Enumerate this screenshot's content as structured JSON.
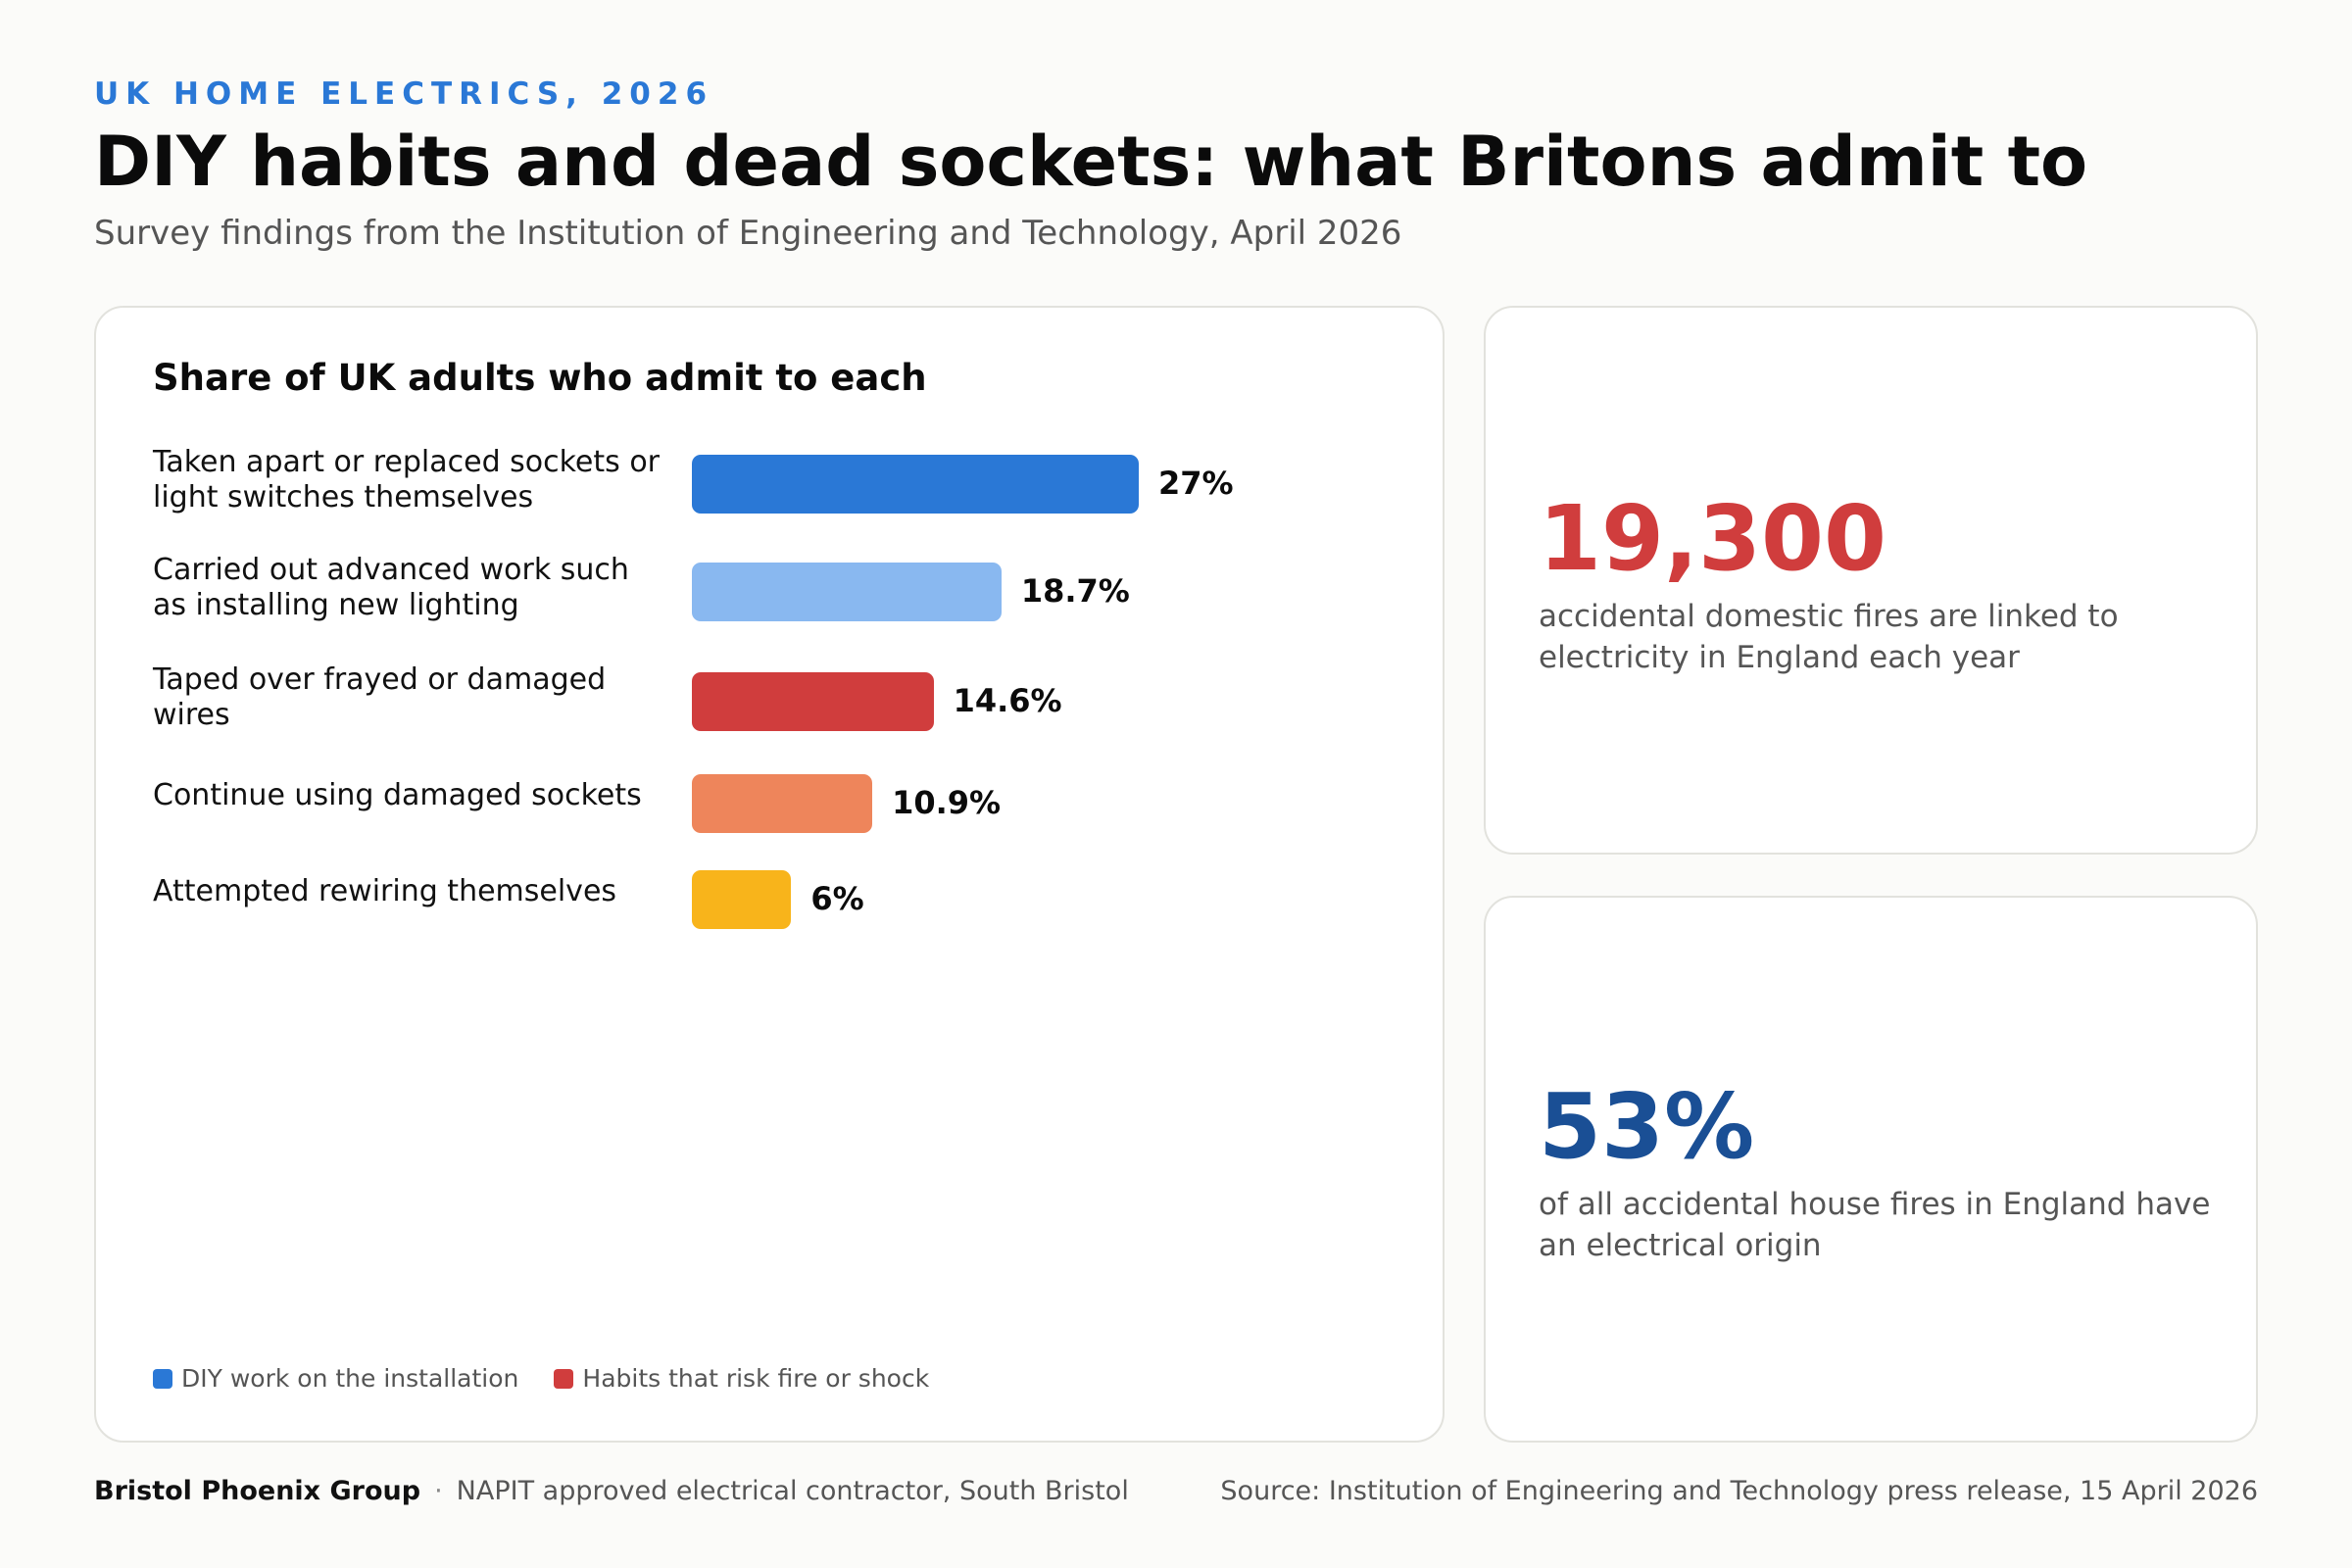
{
  "header": {
    "eyebrow": "UK HOME ELECTRICS, 2026",
    "title": "DIY habits and dead sockets: what Britons admit to",
    "subtitle": "Survey findings from the Institution of Engineering and Technology, April 2026"
  },
  "colors": {
    "accent_blue": "#2a78d6",
    "light_blue": "#89b8f0",
    "red": "#d03d3d",
    "orange": "#ee855b",
    "yellow": "#f8b41b",
    "dark_blue": "#1a4f95"
  },
  "chart_data": {
    "type": "bar",
    "orientation": "horizontal",
    "title": "Share of UK adults who admit to each",
    "categories": [
      "Taken apart or replaced sockets or light switches themselves",
      "Carried out advanced work such as installing new lighting",
      "Taped over frayed or damaged wires",
      "Continue using damaged sockets",
      "Attempted rewiring themselves"
    ],
    "values": [
      27,
      18.7,
      14.6,
      10.9,
      6
    ],
    "value_labels": [
      "27%",
      "18.7%",
      "14.6%",
      "10.9%",
      "6%"
    ],
    "bar_colors": [
      "#2a78d6",
      "#89b8f0",
      "#d03d3d",
      "#ee855b",
      "#f8b41b"
    ],
    "xlim": [
      0,
      100
    ],
    "grid": false,
    "legend_position": "bottom-left",
    "legend": [
      {
        "label": "DIY work on the installation",
        "color": "#2a78d6"
      },
      {
        "label": "Habits that risk fire or shock",
        "color": "#d03d3d"
      }
    ]
  },
  "stats": [
    {
      "number": "19,300",
      "text": "accidental domestic fires are linked to electricity in England each year",
      "color": "#d03d3d"
    },
    {
      "number": "53%",
      "text": "of all accidental house fires in England have an electrical origin",
      "color": "#1a4f95"
    }
  ],
  "footer": {
    "brand": "Bristol Phoenix Group",
    "separator": "·",
    "tagline": "NAPIT approved electrical contractor, South Bristol",
    "source": "Source: Institution of Engineering and Technology press release, 15 April 2026"
  }
}
